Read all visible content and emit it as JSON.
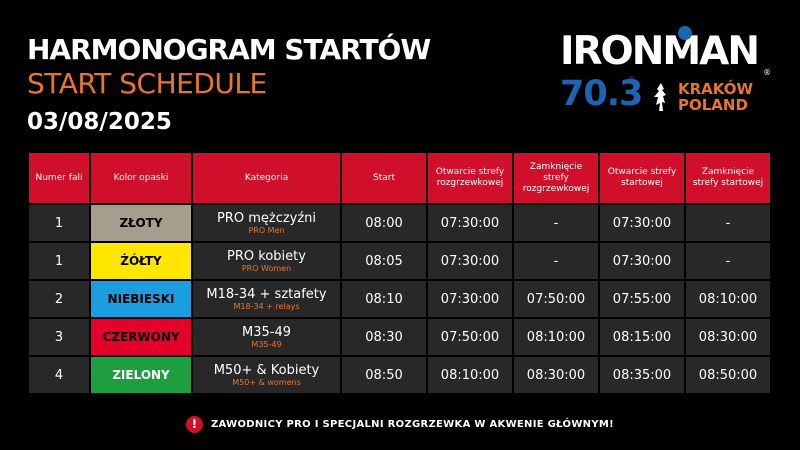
{
  "header": {
    "title_pl": "HARMONOGRAM STARTÓW",
    "title_en": "START SCHEDULE",
    "date": "03/08/2025"
  },
  "logo": {
    "brand": "IRONMAN",
    "distance": "70.3",
    "city": "KRAKÓW",
    "country": "POLAND",
    "colors": {
      "brand_blue": "#1e64b4",
      "accent_orange": "#e8752b"
    }
  },
  "colors": {
    "header_red": "#d0102a",
    "row_bg": "#282828",
    "accent_orange": "#e8752b"
  },
  "table": {
    "headers": [
      "Numer fali",
      "Kolor opaski",
      "Kategoria",
      "Start",
      "Otwarcie strefy rozgrzewkowej",
      "Zamknięcie strefy rozgrzewkowej",
      "Otwarcie strefy startowej",
      "Zamknięcie strefy startowej"
    ],
    "rows": [
      {
        "wave": "1",
        "band": "ZŁOTY",
        "band_bg": "#a79d8c",
        "band_fg": "#000000",
        "category": "PRO mężczyźni",
        "category_en": "PRO Men",
        "start": "08:00",
        "warm_open": "07:30:00",
        "warm_close": "-",
        "start_open": "07:30:00",
        "start_close": "-"
      },
      {
        "wave": "1",
        "band": "ŻÓŁTY",
        "band_bg": "#ffe600",
        "band_fg": "#000000",
        "category": "PRO kobiety",
        "category_en": "PRO Women",
        "start": "08:05",
        "warm_open": "07:30:00",
        "warm_close": "-",
        "start_open": "07:30:00",
        "start_close": "-"
      },
      {
        "wave": "2",
        "band": "NIEBIESKI",
        "band_bg": "#1a9ee0",
        "band_fg": "#000000",
        "category": "M18-34 + sztafety",
        "category_en": "M18-34 + relays",
        "start": "08:10",
        "warm_open": "07:30:00",
        "warm_close": "07:50:00",
        "start_open": "07:55:00",
        "start_close": "08:10:00"
      },
      {
        "wave": "3",
        "band": "CZERWONY",
        "band_bg": "#e4002b",
        "band_fg": "#000000",
        "category": "M35-49",
        "category_en": "M35-49",
        "start": "08:30",
        "warm_open": "07:50:00",
        "warm_close": "08:10:00",
        "start_open": "08:15:00",
        "start_close": "08:30:00"
      },
      {
        "wave": "4",
        "band": "ZIELONY",
        "band_bg": "#1e9e3e",
        "band_fg": "#ffffff",
        "category": "M50+ & Kobiety",
        "category_en": "M50+ & womens",
        "start": "08:50",
        "warm_open": "08:10:00",
        "warm_close": "08:30:00",
        "start_open": "08:35:00",
        "start_close": "08:50:00"
      }
    ]
  },
  "notice": {
    "icon": "exclamation-icon",
    "text": "ZAWODNICY PRO I SPECJALNI ROZGRZEWKA W AKWENIE GŁÓWNYM!"
  }
}
